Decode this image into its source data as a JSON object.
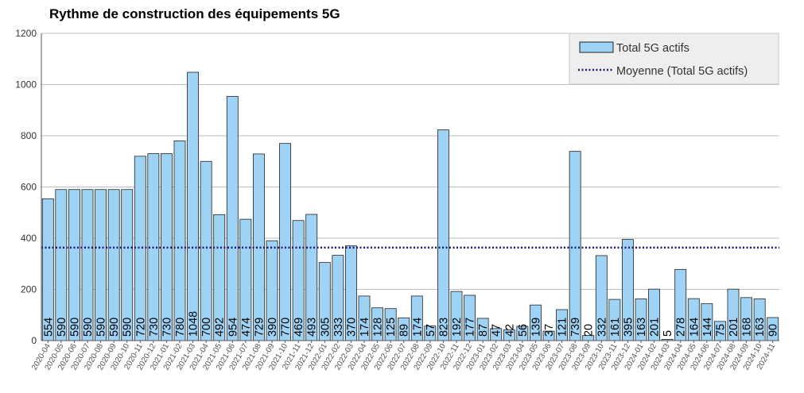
{
  "chart_data": {
    "type": "bar",
    "title": "Rythme de construction des équipements 5G",
    "xlabel": "",
    "ylabel": "",
    "ylim": [
      0,
      1200
    ],
    "yticks": [
      0,
      200,
      400,
      600,
      800,
      1000,
      1200
    ],
    "grid": true,
    "legend_position": "top-right",
    "categories": [
      "2020-04",
      "2020-05",
      "2020-06",
      "2020-07",
      "2020-08",
      "2020-09",
      "2020-10",
      "2020-11",
      "2020-12",
      "2021-01",
      "2021-02",
      "2021-03",
      "2021-04",
      "2021-05",
      "2021-06",
      "2021-07",
      "2021-08",
      "2021-09",
      "2021-10",
      "2021-11",
      "2021-12",
      "2022-01",
      "2022-02",
      "2022-03",
      "2022-04",
      "2022-05",
      "2022-06",
      "2022-07",
      "2022-08",
      "2022-09",
      "2022-10",
      "2022-11",
      "2022-12",
      "2023-01",
      "2023-02",
      "2023-03",
      "2023-04",
      "2023-05",
      "2023-06",
      "2023-07",
      "2023-08",
      "2023-09",
      "2023-10",
      "2023-11",
      "2023-12",
      "2024-01",
      "2024-02",
      "2024-03",
      "2024-04",
      "2024-05",
      "2024-06",
      "2024-07",
      "2024-08",
      "2024-09",
      "2024-10",
      "2024-11"
    ],
    "series": [
      {
        "name": "Total 5G actifs",
        "color": "#9fd3f5",
        "border_color": "#222222",
        "values": [
          554,
          590,
          590,
          590,
          590,
          590,
          590,
          720,
          730,
          730,
          780,
          1048,
          700,
          492,
          954,
          474,
          729,
          390,
          770,
          469,
          493,
          305,
          333,
          370,
          174,
          128,
          125,
          89,
          174,
          57,
          823,
          192,
          177,
          87,
          47,
          42,
          56,
          139,
          37,
          121,
          739,
          20,
          332,
          161,
          395,
          163,
          201,
          5,
          278,
          164,
          144,
          75,
          201,
          168,
          163,
          90
        ]
      }
    ],
    "average": {
      "name": "Moyenne (Total 5G actifs)",
      "value": 363,
      "color": "#1a1a7a"
    }
  }
}
